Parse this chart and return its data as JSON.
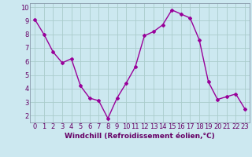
{
  "x": [
    0,
    1,
    2,
    3,
    4,
    5,
    6,
    7,
    8,
    9,
    10,
    11,
    12,
    13,
    14,
    15,
    16,
    17,
    18,
    19,
    20,
    21,
    22,
    23
  ],
  "y": [
    9.1,
    8.0,
    6.7,
    5.9,
    6.2,
    4.2,
    3.3,
    3.1,
    1.8,
    3.3,
    4.4,
    5.6,
    7.9,
    8.2,
    8.7,
    9.8,
    9.5,
    9.2,
    7.6,
    4.5,
    3.2,
    3.4,
    3.6,
    2.5
  ],
  "line_color": "#990099",
  "marker": "D",
  "marker_size": 2.0,
  "bg_color": "#cce8f0",
  "grid_color": "#aacccc",
  "xlabel": "Windchill (Refroidissement éolien,°C)",
  "xlabel_fontsize": 6.5,
  "tick_fontsize": 6.0,
  "xlim": [
    -0.5,
    23.5
  ],
  "ylim": [
    1.5,
    10.3
  ],
  "yticks": [
    2,
    3,
    4,
    5,
    6,
    7,
    8,
    9,
    10
  ],
  "xticks": [
    0,
    1,
    2,
    3,
    4,
    5,
    6,
    7,
    8,
    9,
    10,
    11,
    12,
    13,
    14,
    15,
    16,
    17,
    18,
    19,
    20,
    21,
    22,
    23
  ],
  "tick_color": "#660066",
  "line_width": 1.0
}
